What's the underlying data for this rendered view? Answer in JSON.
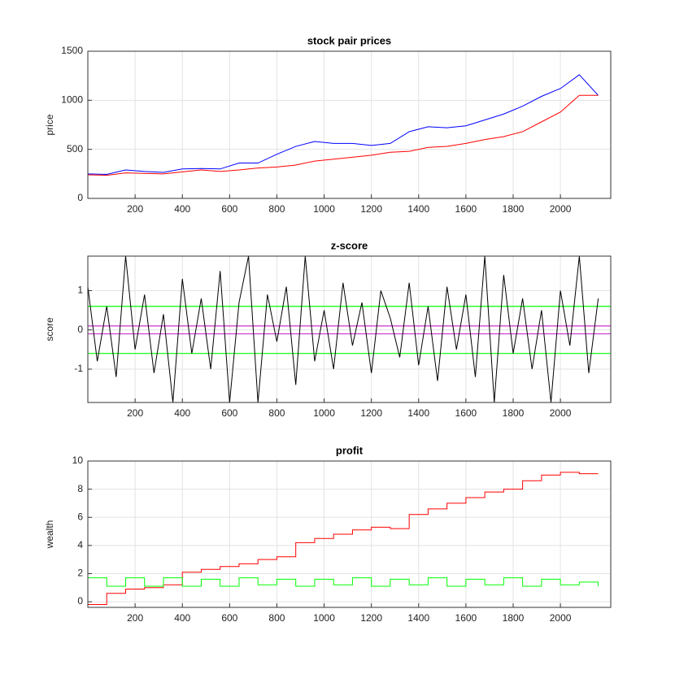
{
  "chart_data": [
    {
      "type": "line",
      "title": "stock pair prices",
      "y_label": "price",
      "x": [
        0,
        80,
        160,
        240,
        320,
        400,
        480,
        560,
        640,
        720,
        800,
        880,
        960,
        1040,
        1120,
        1200,
        1280,
        1360,
        1440,
        1520,
        1600,
        1680,
        1760,
        1840,
        1920,
        2000,
        2080,
        2160
      ],
      "series": [
        {
          "color": "#0000ff",
          "values": [
            250,
            245,
            290,
            275,
            265,
            300,
            305,
            300,
            360,
            360,
            450,
            530,
            580,
            560,
            560,
            540,
            560,
            680,
            730,
            720,
            740,
            800,
            860,
            940,
            1040,
            1120,
            1260,
            1050
          ]
        },
        {
          "color": "#ff0000",
          "values": [
            240,
            235,
            260,
            255,
            250,
            270,
            290,
            275,
            290,
            310,
            320,
            340,
            380,
            400,
            420,
            440,
            470,
            480,
            520,
            530,
            560,
            600,
            630,
            680,
            780,
            880,
            1050,
            1050
          ]
        }
      ],
      "xlim": [
        0,
        2213
      ],
      "xticks": [
        200,
        400,
        600,
        800,
        1000,
        1200,
        1400,
        1600,
        1800,
        2000
      ],
      "ylim": [
        0,
        1500
      ],
      "yticks": [
        0,
        500,
        1000,
        1500
      ],
      "grid": true
    },
    {
      "type": "line",
      "title": "z-score",
      "y_label": "score",
      "x": [
        0,
        40,
        80,
        120,
        160,
        200,
        240,
        280,
        320,
        360,
        400,
        440,
        480,
        520,
        560,
        600,
        640,
        680,
        720,
        760,
        800,
        840,
        880,
        920,
        960,
        1000,
        1040,
        1080,
        1120,
        1160,
        1200,
        1240,
        1280,
        1320,
        1360,
        1400,
        1440,
        1480,
        1520,
        1560,
        1600,
        1640,
        1680,
        1720,
        1760,
        1800,
        1840,
        1880,
        1920,
        1960,
        2000,
        2040,
        2080,
        2120,
        2160
      ],
      "series": [
        {
          "color": "#000000",
          "values": [
            1.1,
            -0.8,
            0.6,
            -1.2,
            1.88,
            -0.5,
            0.9,
            -1.1,
            0.4,
            -1.85,
            1.3,
            -0.6,
            0.8,
            -1.0,
            1.5,
            -1.85,
            0.7,
            1.88,
            -1.85,
            0.9,
            -0.3,
            1.1,
            -1.4,
            1.88,
            -0.8,
            0.5,
            -1.0,
            1.2,
            -0.4,
            0.7,
            -1.1,
            1.0,
            0.3,
            -0.7,
            1.2,
            -0.9,
            0.6,
            -1.3,
            1.1,
            -0.5,
            0.9,
            -1.2,
            1.88,
            -1.85,
            1.4,
            -0.6,
            0.8,
            -1.0,
            0.5,
            -1.85,
            1.0,
            -0.4,
            1.88,
            -1.1,
            0.8
          ]
        }
      ],
      "reference_lines": [
        {
          "value": 0.6,
          "color": "#00ff00"
        },
        {
          "value": -0.6,
          "color": "#00ff00"
        },
        {
          "value": 0.1,
          "color": "#cc33cc"
        },
        {
          "value": -0.1,
          "color": "#cc33cc"
        }
      ],
      "xlim": [
        0,
        2213
      ],
      "xticks": [
        200,
        400,
        600,
        800,
        1000,
        1200,
        1400,
        1600,
        1800,
        2000
      ],
      "ylim": [
        -1.85,
        1.88
      ],
      "yticks": [
        -1,
        0,
        1
      ],
      "grid": true
    },
    {
      "type": "line",
      "title": "profit",
      "y_label": "wealth",
      "step": true,
      "x": [
        0,
        80,
        160,
        240,
        320,
        400,
        480,
        560,
        640,
        720,
        800,
        880,
        960,
        1040,
        1120,
        1200,
        1280,
        1360,
        1440,
        1520,
        1600,
        1680,
        1760,
        1840,
        1920,
        2000,
        2080,
        2160
      ],
      "series": [
        {
          "color": "#ff0000",
          "values": [
            -0.2,
            0.6,
            0.9,
            1.0,
            1.2,
            2.1,
            2.3,
            2.5,
            2.7,
            3.0,
            3.2,
            4.2,
            4.5,
            4.8,
            5.1,
            5.3,
            5.2,
            6.2,
            6.6,
            7.0,
            7.4,
            7.8,
            8.0,
            8.6,
            9.0,
            9.2,
            9.1,
            9.1
          ]
        },
        {
          "color": "#00ff00",
          "values": [
            1.7,
            1.1,
            1.7,
            1.1,
            1.7,
            1.1,
            1.6,
            1.1,
            1.7,
            1.2,
            1.6,
            1.1,
            1.6,
            1.2,
            1.7,
            1.1,
            1.6,
            1.2,
            1.7,
            1.1,
            1.6,
            1.2,
            1.7,
            1.1,
            1.6,
            1.2,
            1.4,
            1.1
          ]
        }
      ],
      "xlim": [
        0,
        2213
      ],
      "xticks": [
        200,
        400,
        600,
        800,
        1000,
        1200,
        1400,
        1600,
        1800,
        2000
      ],
      "ylim": [
        -0.4,
        10
      ],
      "yticks": [
        0,
        2,
        4,
        6,
        8,
        10
      ],
      "grid": true
    }
  ]
}
